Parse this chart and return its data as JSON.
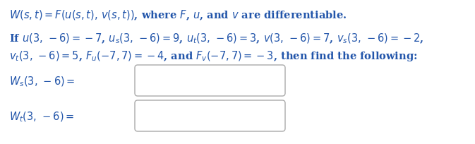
{
  "background_color": "#ffffff",
  "title_line": "$W(s, t) = F(u(s, t),\\, v(s, t))$, where $F$, $u$, and $v$ are differentiable.",
  "line1": "If $u(3,\\,-6) = -7$, $u_s(3,\\,-6) = 9$, $u_t(3,\\,-6) = 3$, $v(3,\\,-6) = 7$, $v_s(3,\\,-6) = -2$,",
  "line2": "$v_t(3,\\,-6) = 5$, $F_u(-7, 7) = -4$, and $F_v(-7, 7) = -3$, then find the following:",
  "ws_label": "$W_s(3,\\,-6) =$",
  "wt_label": "$W_t(3,\\,-6) =$",
  "text_color": "#2255aa",
  "box_edge_color": "#aaaaaa",
  "font_size": 10.5,
  "fig_width": 6.73,
  "fig_height": 2.05,
  "dpi": 100
}
